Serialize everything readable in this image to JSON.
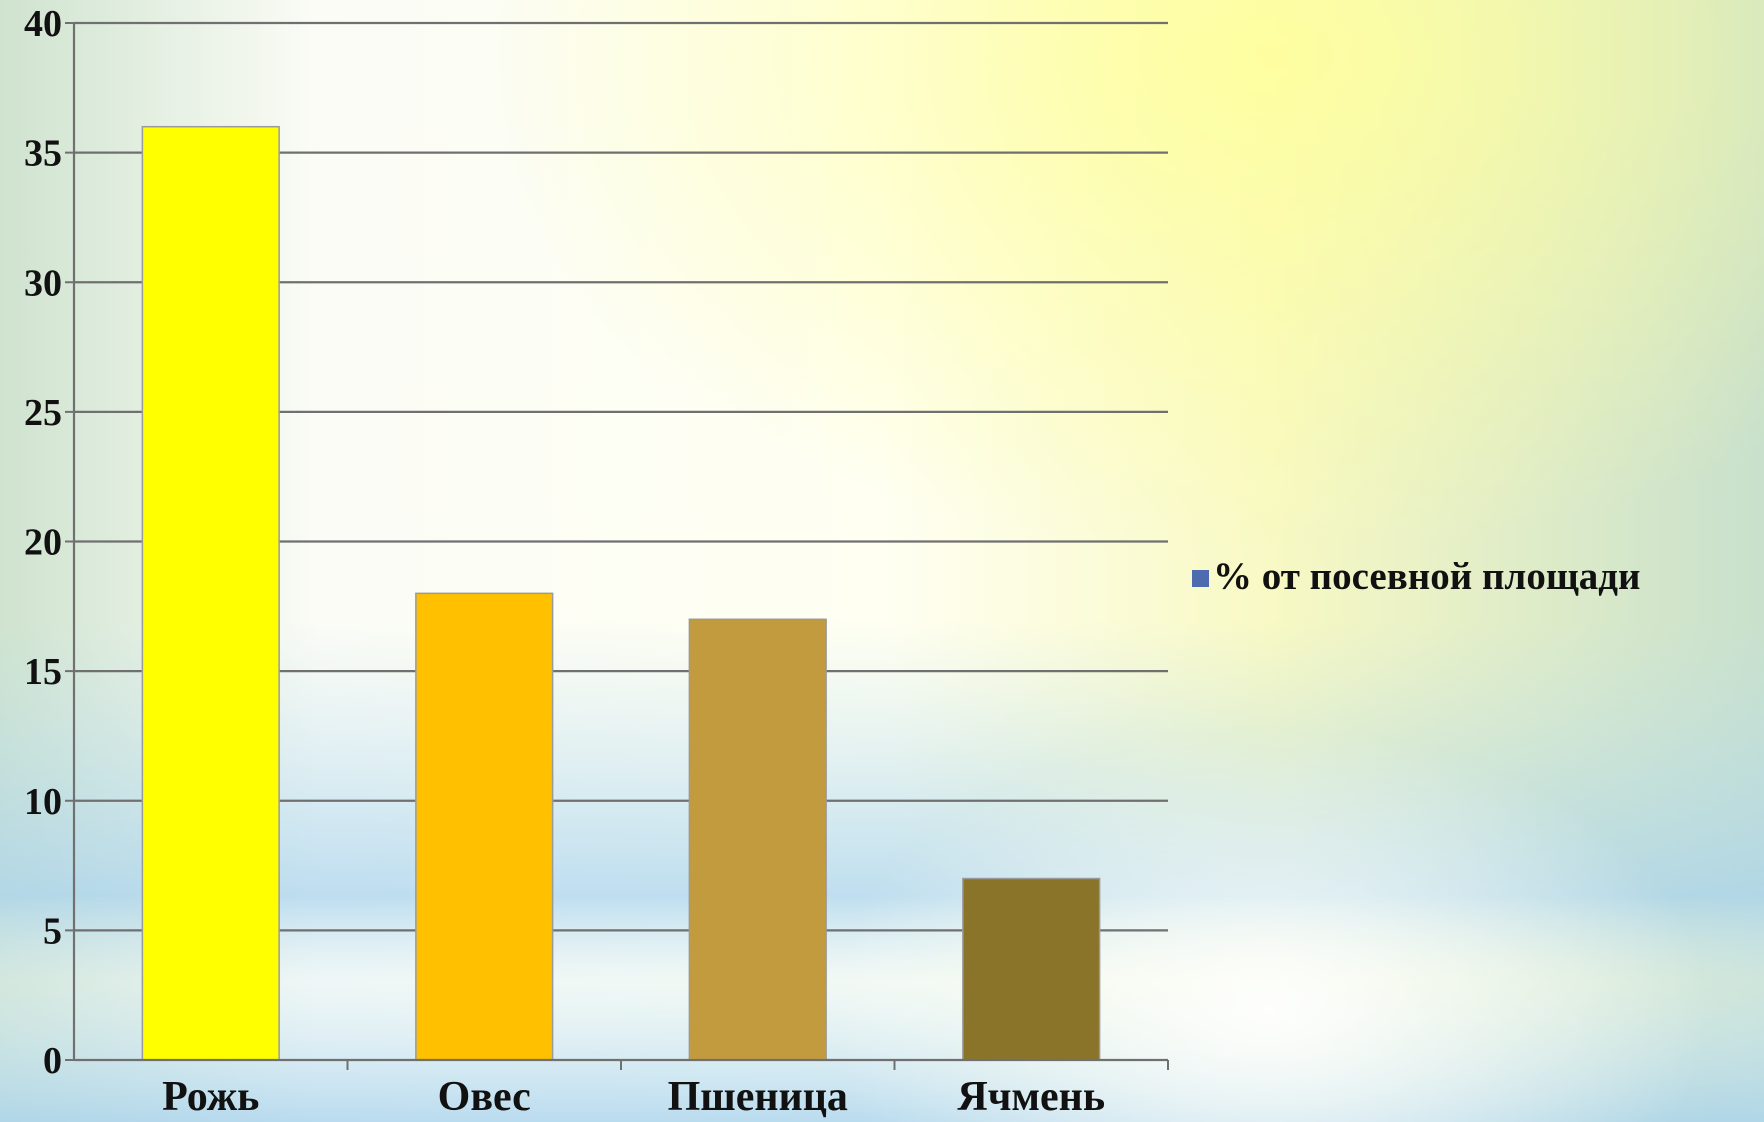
{
  "chart_data": {
    "type": "bar",
    "categories": [
      "Рожь",
      "Овес",
      "Пшеница",
      "Ячмень"
    ],
    "series": [
      {
        "name": "% от посевной площади",
        "values": [
          36,
          18,
          17,
          7
        ],
        "bar_colors": [
          "#ffff00",
          "#ffc000",
          "#c29b3e",
          "#8a742a"
        ]
      }
    ],
    "title": "",
    "xlabel": "",
    "ylabel": "",
    "ylim": [
      0,
      40
    ],
    "yticks": [
      0,
      5,
      10,
      15,
      20,
      25,
      30,
      35,
      40
    ],
    "grid": true,
    "legend": {
      "position": "right",
      "label": "% от посевной площади",
      "swatch_color": "#4f6bb0"
    }
  }
}
